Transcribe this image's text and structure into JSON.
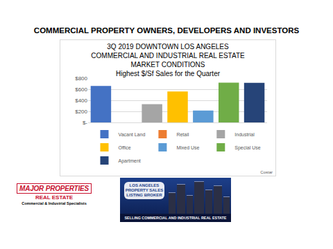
{
  "heading": "COMMERCIAL PROPERTY OWNERS, DEVELOPERS AND INVESTORS",
  "chart_data": {
    "type": "bar",
    "title": "3Q 2019 DOWNTOWN LOS ANGELES\nCOMMERCIAL AND INDUSTRIAL REAL ESTATE\nMARKET CONDITIONS\nHighest $/Sf Sales for the Quarter",
    "categories": [
      "Vacant Land",
      "Retail",
      "Industrial",
      "Office",
      "Mixed Use",
      "Special Use",
      "Apartment"
    ],
    "values": [
      660,
      0,
      330,
      560,
      215,
      720,
      715
    ],
    "colors": [
      "#4472c4",
      "#ed7d31",
      "#a5a5a5",
      "#ffc000",
      "#5b9bd5",
      "#70ad47",
      "#264478"
    ],
    "ylim": [
      0,
      800
    ],
    "yticks": [
      {
        "value": 0,
        "label": "$-"
      },
      {
        "value": 200,
        "label": "$200"
      },
      {
        "value": 400,
        "label": "$400"
      },
      {
        "value": 600,
        "label": "$600"
      },
      {
        "value": 800,
        "label": "$800"
      }
    ],
    "grid": true,
    "legend": "bottom",
    "tick_labels": "y",
    "source": "Costar"
  },
  "logo": {
    "name": "MAJOR PROPERTIES",
    "line2": "REAL ESTATE",
    "tagline": "Commercial & Industrial Specialists"
  },
  "banner": {
    "lines": [
      "LOS ANGELES",
      "PROPERTY SALES",
      "LISTING BROKER"
    ],
    "caption": "SELLING COMMERCIAL AND INDUSTRIAL REAL ESTATE"
  }
}
